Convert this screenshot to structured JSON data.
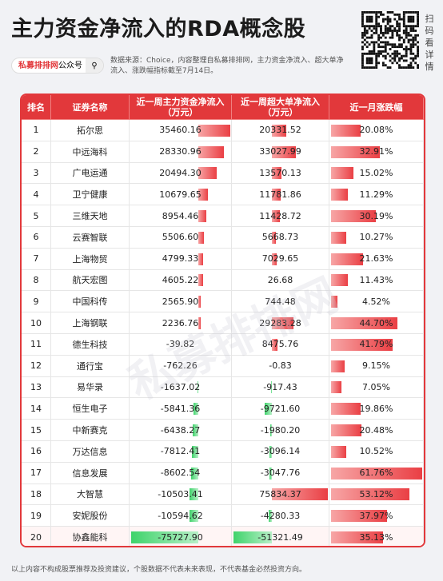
{
  "header": {
    "title": "主力资金净流入的RDA概念股",
    "brand": "私募排排网",
    "brand_suffix": "公众号",
    "source": "数据来源：Choice，内容整理自私募排排网，主力资金净流入、超大单净流入、涨跌幅指标截至7月14日。",
    "qr_caption": "扫码看详情"
  },
  "table": {
    "columns": [
      "排名",
      "证券名称",
      "近一周主力资金净流入\n（万元）",
      "近一周超大单净流入\n（万元）",
      "近一月涨跌幅"
    ],
    "rows": [
      [
        "1",
        "拓尔思",
        "35460.16",
        "20331.52",
        "20.08%"
      ],
      [
        "2",
        "中远海科",
        "28330.96",
        "33027.99",
        "32.91%"
      ],
      [
        "3",
        "广电运通",
        "20494.30",
        "13570.13",
        "15.02%"
      ],
      [
        "4",
        "卫宁健康",
        "10679.65",
        "11781.86",
        "11.29%"
      ],
      [
        "5",
        "三维天地",
        "8954.46",
        "11428.72",
        "30.19%"
      ],
      [
        "6",
        "云赛智联",
        "5506.60",
        "5668.73",
        "10.27%"
      ],
      [
        "7",
        "上海物贸",
        "4799.33",
        "7029.65",
        "21.63%"
      ],
      [
        "8",
        "航天宏图",
        "4605.22",
        "26.68",
        "11.43%"
      ],
      [
        "9",
        "中国科传",
        "2565.90",
        "744.48",
        "4.52%"
      ],
      [
        "10",
        "上海钢联",
        "2236.76",
        "29283.28",
        "44.70%"
      ],
      [
        "11",
        "德生科技",
        "-39.82",
        "8475.76",
        "41.79%"
      ],
      [
        "12",
        "通行宝",
        "-762.26",
        "-0.83",
        "9.15%"
      ],
      [
        "13",
        "易华录",
        "-1637.02",
        "-917.43",
        "7.05%"
      ],
      [
        "14",
        "恒生电子",
        "-5841.36",
        "-9721.60",
        "19.86%"
      ],
      [
        "15",
        "中新赛克",
        "-6438.27",
        "-1980.20",
        "20.48%"
      ],
      [
        "16",
        "万达信息",
        "-7812.41",
        "-3096.14",
        "10.52%"
      ],
      [
        "17",
        "信息发展",
        "-8602.54",
        "-3047.76",
        "61.76%"
      ],
      [
        "18",
        "大智慧",
        "-10503.41",
        "75834.37",
        "53.12%"
      ],
      [
        "19",
        "安妮股份",
        "-10594.62",
        "-4280.33",
        "37.97%"
      ],
      [
        "20",
        "协鑫能科",
        "-75727.90",
        "-51321.49",
        "35.13%"
      ]
    ]
  },
  "watermark": "私募排排网",
  "footer": "以上内容不构成股票推荐及投资建议，个股数据不代表未来表现，不代表基金必然投资方向。"
}
